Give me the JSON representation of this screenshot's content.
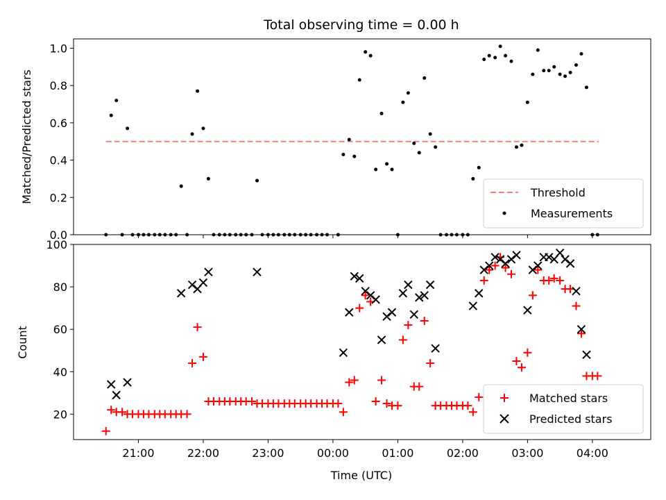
{
  "chart_data": [
    {
      "type": "scatter",
      "title": "Total observing time = 0.00 h",
      "xlabel": "",
      "ylabel": "Matched/Predicted stars",
      "ylim": [
        0,
        1.05
      ],
      "yticks": [
        "0.0",
        "0.2",
        "0.4",
        "0.6",
        "0.8",
        "1.0"
      ],
      "xlim_hours": [
        20.0,
        28.9
      ],
      "threshold": {
        "name": "Threshold",
        "value": 0.5,
        "x_start": 20.5,
        "x_end": 28.1,
        "color": "#f08080"
      },
      "legend_position": "lower-right",
      "series": [
        {
          "name": "Measurements",
          "color": "#000000",
          "points": [
            [
              20.5,
              0.0
            ],
            [
              20.58,
              0.64
            ],
            [
              20.66,
              0.72
            ],
            [
              20.75,
              0.0
            ],
            [
              20.83,
              0.57
            ],
            [
              20.91,
              0.0
            ],
            [
              21.0,
              0.0
            ],
            [
              21.08,
              0.0
            ],
            [
              21.16,
              0.0
            ],
            [
              21.25,
              0.0
            ],
            [
              21.33,
              0.0
            ],
            [
              21.41,
              0.0
            ],
            [
              21.5,
              0.0
            ],
            [
              21.58,
              0.0
            ],
            [
              21.66,
              0.26
            ],
            [
              21.75,
              0.0
            ],
            [
              21.83,
              0.54
            ],
            [
              21.91,
              0.77
            ],
            [
              22.0,
              0.57
            ],
            [
              22.08,
              0.3
            ],
            [
              22.16,
              0.0
            ],
            [
              22.25,
              0.0
            ],
            [
              22.33,
              0.0
            ],
            [
              22.41,
              0.0
            ],
            [
              22.5,
              0.0
            ],
            [
              22.58,
              0.0
            ],
            [
              22.66,
              0.0
            ],
            [
              22.75,
              0.0
            ],
            [
              22.83,
              0.29
            ],
            [
              22.91,
              0.0
            ],
            [
              23.0,
              0.0
            ],
            [
              23.08,
              0.0
            ],
            [
              23.16,
              0.0
            ],
            [
              23.25,
              0.0
            ],
            [
              23.33,
              0.0
            ],
            [
              23.41,
              0.0
            ],
            [
              23.5,
              0.0
            ],
            [
              23.58,
              0.0
            ],
            [
              23.66,
              0.0
            ],
            [
              23.75,
              0.0
            ],
            [
              23.83,
              0.0
            ],
            [
              23.91,
              0.0
            ],
            [
              24.08,
              0.0
            ],
            [
              24.16,
              0.43
            ],
            [
              24.25,
              0.51
            ],
            [
              24.33,
              0.42
            ],
            [
              24.41,
              0.83
            ],
            [
              24.5,
              0.98
            ],
            [
              24.58,
              0.96
            ],
            [
              24.66,
              0.35
            ],
            [
              24.75,
              0.65
            ],
            [
              24.83,
              0.38
            ],
            [
              24.91,
              0.35
            ],
            [
              25.0,
              0.0
            ],
            [
              25.08,
              0.71
            ],
            [
              25.16,
              0.76
            ],
            [
              25.25,
              0.49
            ],
            [
              25.33,
              0.44
            ],
            [
              25.41,
              0.84
            ],
            [
              25.5,
              0.54
            ],
            [
              25.58,
              0.47
            ],
            [
              25.66,
              0.0
            ],
            [
              25.75,
              0.0
            ],
            [
              25.83,
              0.0
            ],
            [
              25.91,
              0.0
            ],
            [
              26.0,
              0.0
            ],
            [
              26.08,
              0.0
            ],
            [
              26.16,
              0.3
            ],
            [
              26.25,
              0.36
            ],
            [
              26.33,
              0.94
            ],
            [
              26.41,
              0.96
            ],
            [
              26.5,
              0.95
            ],
            [
              26.58,
              1.01
            ],
            [
              26.66,
              0.96
            ],
            [
              26.75,
              0.93
            ],
            [
              26.83,
              0.47
            ],
            [
              26.91,
              0.48
            ],
            [
              27.0,
              0.71
            ],
            [
              27.08,
              0.86
            ],
            [
              27.16,
              0.99
            ],
            [
              27.25,
              0.88
            ],
            [
              27.33,
              0.88
            ],
            [
              27.41,
              0.9
            ],
            [
              27.5,
              0.86
            ],
            [
              27.58,
              0.85
            ],
            [
              27.66,
              0.87
            ],
            [
              27.75,
              0.91
            ],
            [
              27.83,
              0.97
            ],
            [
              27.91,
              0.79
            ],
            [
              28.0,
              0.0
            ],
            [
              28.08,
              0.0
            ]
          ]
        }
      ]
    },
    {
      "type": "scatter",
      "title": "",
      "xlabel": "Time (UTC)",
      "ylabel": "Count",
      "ylim": [
        8,
        100
      ],
      "yticks": [
        "20",
        "40",
        "60",
        "80",
        "100"
      ],
      "xlim_hours": [
        20.0,
        28.9
      ],
      "xticks": [
        {
          "hour": 21,
          "label": "21:00"
        },
        {
          "hour": 22,
          "label": "22:00"
        },
        {
          "hour": 23,
          "label": "23:00"
        },
        {
          "hour": 24,
          "label": "00:00"
        },
        {
          "hour": 25,
          "label": "01:00"
        },
        {
          "hour": 26,
          "label": "02:00"
        },
        {
          "hour": 27,
          "label": "03:00"
        },
        {
          "hour": 28,
          "label": "04:00"
        }
      ],
      "legend_position": "lower-right",
      "series": [
        {
          "name": "Matched stars",
          "marker": "plus",
          "color": "#ff0000",
          "points": [
            [
              20.5,
              12
            ],
            [
              20.58,
              22
            ],
            [
              20.66,
              21
            ],
            [
              20.75,
              21
            ],
            [
              20.83,
              20
            ],
            [
              20.91,
              20
            ],
            [
              21.0,
              20
            ],
            [
              21.08,
              20
            ],
            [
              21.16,
              20
            ],
            [
              21.25,
              20
            ],
            [
              21.33,
              20
            ],
            [
              21.41,
              20
            ],
            [
              21.5,
              20
            ],
            [
              21.58,
              20
            ],
            [
              21.66,
              20
            ],
            [
              21.75,
              20
            ],
            [
              21.83,
              44
            ],
            [
              21.91,
              61
            ],
            [
              22.0,
              47
            ],
            [
              22.08,
              26
            ],
            [
              22.16,
              26
            ],
            [
              22.25,
              26
            ],
            [
              22.33,
              26
            ],
            [
              22.41,
              26
            ],
            [
              22.5,
              26
            ],
            [
              22.58,
              26
            ],
            [
              22.66,
              26
            ],
            [
              22.75,
              26
            ],
            [
              22.83,
              25
            ],
            [
              22.91,
              25
            ],
            [
              23.0,
              25
            ],
            [
              23.08,
              25
            ],
            [
              23.16,
              25
            ],
            [
              23.25,
              25
            ],
            [
              23.33,
              25
            ],
            [
              23.41,
              25
            ],
            [
              23.5,
              25
            ],
            [
              23.58,
              25
            ],
            [
              23.66,
              25
            ],
            [
              23.75,
              25
            ],
            [
              23.83,
              25
            ],
            [
              23.91,
              25
            ],
            [
              24.0,
              25
            ],
            [
              24.08,
              25
            ],
            [
              24.16,
              21
            ],
            [
              24.25,
              35
            ],
            [
              24.33,
              36
            ],
            [
              24.41,
              70
            ],
            [
              24.5,
              76
            ],
            [
              24.58,
              73
            ],
            [
              24.66,
              26
            ],
            [
              24.75,
              36
            ],
            [
              24.83,
              25
            ],
            [
              24.91,
              24
            ],
            [
              25.0,
              24
            ],
            [
              25.08,
              55
            ],
            [
              25.16,
              62
            ],
            [
              25.25,
              33
            ],
            [
              25.33,
              33
            ],
            [
              25.41,
              64
            ],
            [
              25.5,
              44
            ],
            [
              25.58,
              24
            ],
            [
              25.66,
              24
            ],
            [
              25.75,
              24
            ],
            [
              25.83,
              24
            ],
            [
              25.91,
              24
            ],
            [
              26.0,
              24
            ],
            [
              26.08,
              24
            ],
            [
              26.16,
              21
            ],
            [
              26.25,
              28
            ],
            [
              26.33,
              83
            ],
            [
              26.41,
              88
            ],
            [
              26.5,
              90
            ],
            [
              26.58,
              94
            ],
            [
              26.66,
              89
            ],
            [
              26.75,
              86
            ],
            [
              26.83,
              45
            ],
            [
              26.91,
              42
            ],
            [
              27.0,
              49
            ],
            [
              27.08,
              76
            ],
            [
              27.16,
              88
            ],
            [
              27.25,
              83
            ],
            [
              27.33,
              83
            ],
            [
              27.41,
              84
            ],
            [
              27.5,
              83
            ],
            [
              27.58,
              79
            ],
            [
              27.66,
              79
            ],
            [
              27.75,
              71
            ],
            [
              27.83,
              58
            ],
            [
              27.91,
              38
            ],
            [
              28.0,
              38
            ],
            [
              28.08,
              38
            ]
          ]
        },
        {
          "name": "Predicted stars",
          "marker": "x",
          "color": "#000000",
          "points": [
            [
              20.58,
              34
            ],
            [
              20.66,
              29
            ],
            [
              20.83,
              35
            ],
            [
              21.66,
              77
            ],
            [
              21.83,
              81
            ],
            [
              21.91,
              79
            ],
            [
              22.0,
              82
            ],
            [
              22.08,
              87
            ],
            [
              22.83,
              87
            ],
            [
              24.16,
              49
            ],
            [
              24.25,
              68
            ],
            [
              24.33,
              85
            ],
            [
              24.41,
              84
            ],
            [
              24.5,
              78
            ],
            [
              24.58,
              76
            ],
            [
              24.66,
              74
            ],
            [
              24.75,
              55
            ],
            [
              24.83,
              66
            ],
            [
              24.91,
              68
            ],
            [
              25.08,
              77
            ],
            [
              25.16,
              81
            ],
            [
              25.25,
              67
            ],
            [
              25.33,
              75
            ],
            [
              25.41,
              76
            ],
            [
              25.5,
              81
            ],
            [
              25.58,
              51
            ],
            [
              26.16,
              71
            ],
            [
              26.25,
              77
            ],
            [
              26.33,
              88
            ],
            [
              26.41,
              90
            ],
            [
              26.5,
              94
            ],
            [
              26.58,
              93
            ],
            [
              26.66,
              91
            ],
            [
              26.75,
              93
            ],
            [
              26.83,
              95
            ],
            [
              27.0,
              69
            ],
            [
              27.08,
              88
            ],
            [
              27.16,
              90
            ],
            [
              27.25,
              94
            ],
            [
              27.33,
              94
            ],
            [
              27.41,
              93
            ],
            [
              27.5,
              96
            ],
            [
              27.58,
              93
            ],
            [
              27.66,
              91
            ],
            [
              27.75,
              78
            ],
            [
              27.83,
              60
            ],
            [
              27.91,
              48
            ]
          ]
        }
      ]
    }
  ]
}
